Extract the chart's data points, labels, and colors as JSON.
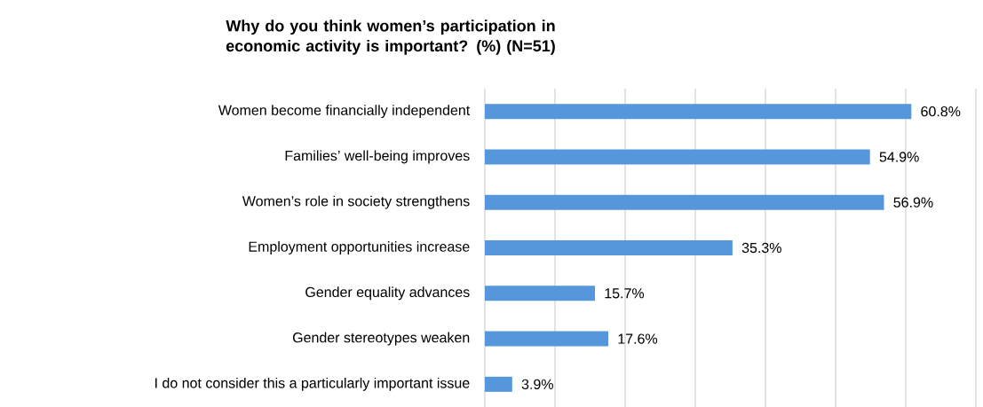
{
  "chart_data": {
    "type": "bar",
    "orientation": "horizontal",
    "title": "Why do you think women’s participation in economic activity is important? (%) (N=51)",
    "categories": [
      "Women become financially independent",
      "Families’ well-being improves",
      "Women’s role in society strengthens",
      "Employment opportunities increase",
      "Gender equality advances",
      "Gender stereotypes weaken",
      "I do not consider this a particularly important issue"
    ],
    "values": [
      60.8,
      54.9,
      56.9,
      35.3,
      15.7,
      17.6,
      3.9
    ],
    "value_labels": [
      "60.8%",
      "54.9%",
      "56.9%",
      "35.3%",
      "15.7%",
      "17.6%",
      "3.9%"
    ],
    "color": "#5597da",
    "xlim": [
      0,
      70
    ],
    "xticks": [
      {
        "value": 0,
        "label": null
      },
      {
        "value": 10,
        "label": null
      },
      {
        "value": 20,
        "label": null
      },
      {
        "value": 30,
        "label": null
      },
      {
        "value": 40,
        "label": null
      },
      {
        "value": 50,
        "label": null
      },
      {
        "value": 60,
        "label": null
      },
      {
        "value": 70,
        "label": null
      }
    ],
    "grid": "x",
    "tick_labels": "y"
  }
}
